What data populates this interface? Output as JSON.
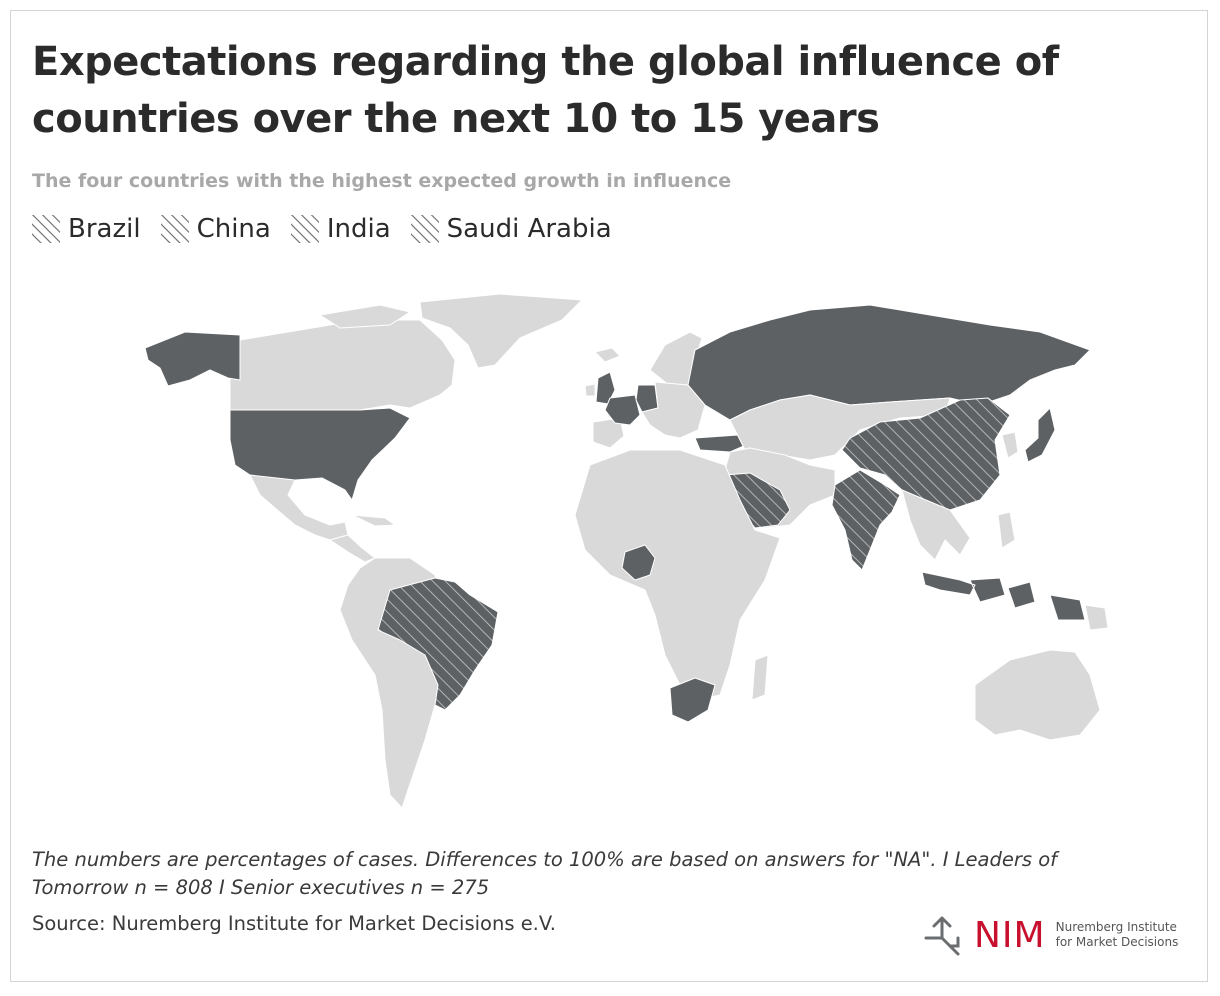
{
  "title": "Expectations regarding the global influence of countries over the next 10 to 15 years",
  "subtitle": "The four countries with the highest expected growth in influence",
  "legend": [
    {
      "label": "Brazil"
    },
    {
      "label": "China"
    },
    {
      "label": "India"
    },
    {
      "label": "Saudi Arabia"
    }
  ],
  "colors": {
    "land": "#d9d9d9",
    "highlight": "#5d6164",
    "hatch_line": "#bcbcbc",
    "border": "#ffffff",
    "brand_red": "#c8102e"
  },
  "map": {
    "hatched_countries": [
      "Brazil",
      "China",
      "India",
      "Saudi Arabia"
    ],
    "dark_countries": [
      "United States",
      "Alaska",
      "Russia",
      "United Kingdom",
      "France",
      "Germany",
      "Turkey",
      "Nigeria",
      "South Africa",
      "Indonesia",
      "Japan"
    ]
  },
  "footnote": "The numbers are percentages of cases. Differences to 100% are based on answers for \"NA\".  I Leaders of Tomorrow n = 808 I Senior executives n = 275",
  "source": "Source: Nuremberg Institute for Market Decisions e.V.",
  "logo": {
    "wordmark": "NIM",
    "line1": "Nuremberg Institute",
    "line2": "for Market Decisions"
  }
}
